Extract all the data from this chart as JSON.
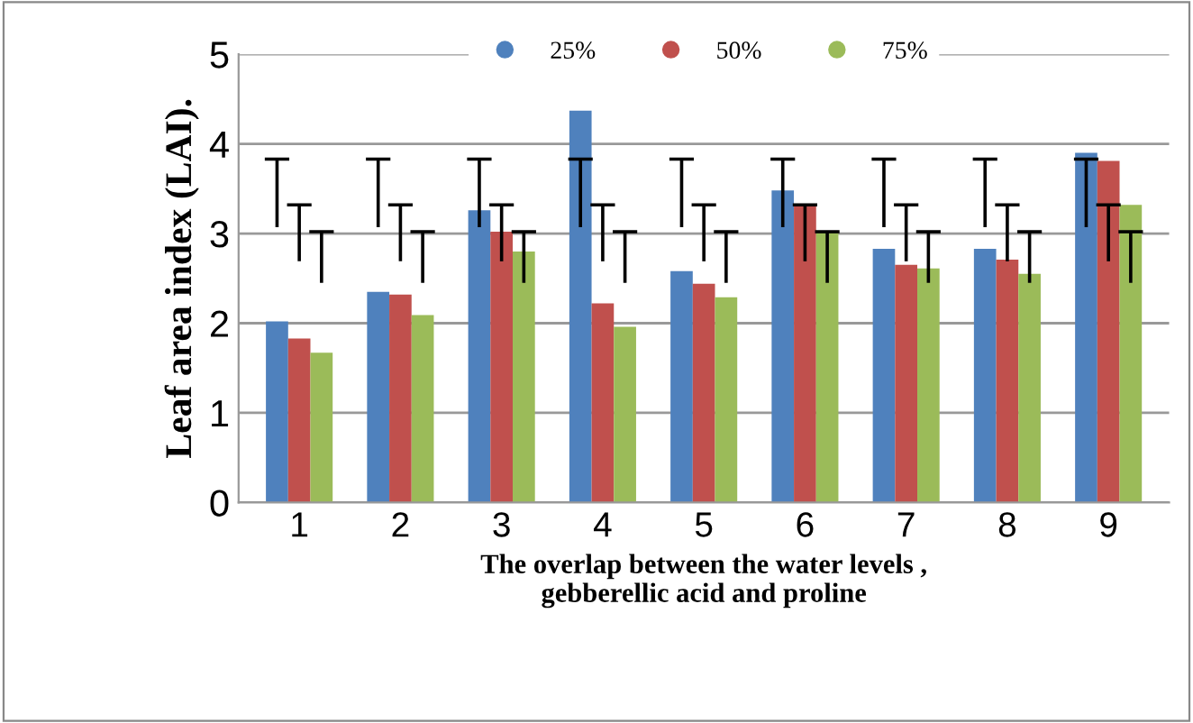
{
  "chart_data": {
    "type": "bar",
    "ylabel": "Leaf area index (LAI).",
    "xlabel": "The overlap between the water levels ,\ngebberellic acid and proline",
    "categories": [
      "1",
      "2",
      "3",
      "4",
      "5",
      "6",
      "7",
      "8",
      "9"
    ],
    "series": [
      {
        "name": "25%",
        "color": "#4f81bd",
        "values": [
          2.02,
          2.35,
          3.26,
          4.37,
          2.58,
          3.48,
          2.83,
          2.83,
          3.9
        ],
        "errors": [
          [
            3.07,
            3.83
          ],
          [
            3.07,
            3.83
          ],
          [
            3.07,
            3.83
          ],
          [
            3.07,
            3.83
          ],
          [
            3.07,
            3.83
          ],
          [
            3.07,
            3.83
          ],
          [
            3.07,
            3.83
          ],
          [
            3.07,
            3.83
          ],
          [
            3.07,
            3.83
          ]
        ]
      },
      {
        "name": "50%",
        "color": "#c0504d",
        "values": [
          1.83,
          2.32,
          3.02,
          2.22,
          2.44,
          3.31,
          2.65,
          2.71,
          3.81
        ],
        "errors": [
          [
            2.69,
            3.32
          ],
          [
            2.69,
            3.32
          ],
          [
            2.69,
            3.32
          ],
          [
            2.69,
            3.32
          ],
          [
            2.69,
            3.32
          ],
          [
            2.69,
            3.32
          ],
          [
            2.69,
            3.32
          ],
          [
            2.69,
            3.32
          ],
          [
            2.69,
            3.32
          ]
        ]
      },
      {
        "name": "75%",
        "color": "#9bbb59",
        "values": [
          1.67,
          2.09,
          2.8,
          1.96,
          2.29,
          3.02,
          2.61,
          2.55,
          3.32
        ],
        "errors": [
          [
            2.45,
            3.02
          ],
          [
            2.45,
            3.02
          ],
          [
            2.45,
            3.02
          ],
          [
            2.45,
            3.02
          ],
          [
            2.45,
            3.02
          ],
          [
            2.45,
            3.02
          ],
          [
            2.45,
            3.02
          ],
          [
            2.45,
            3.02
          ],
          [
            2.45,
            3.02
          ]
        ]
      }
    ],
    "ylim": [
      0,
      5
    ],
    "yticks": [
      0,
      1,
      2,
      3,
      4,
      5
    ],
    "grid": "y",
    "legend": "top"
  }
}
